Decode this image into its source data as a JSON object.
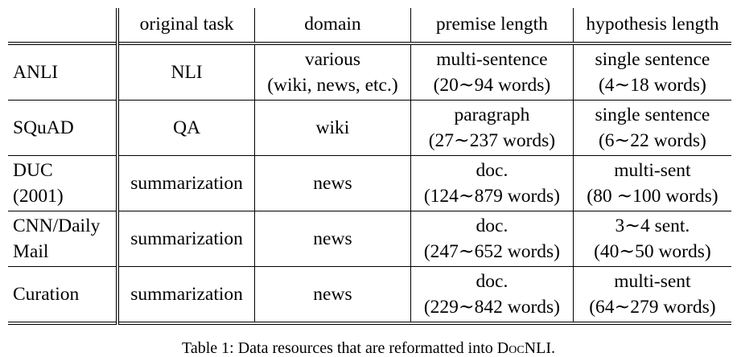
{
  "table": {
    "headers": [
      "",
      "original task",
      "domain",
      "premise length",
      "hypothesis length"
    ],
    "rows": [
      {
        "name": "ANLI",
        "task": "NLI",
        "domain": [
          "various",
          "(wiki, news, etc.)"
        ],
        "premise": [
          "multi-sentence",
          "(20∼94 words)"
        ],
        "hypothesis": [
          "single sentence",
          "(4∼18 words)"
        ]
      },
      {
        "name": "SQuAD",
        "task": "QA",
        "domain": [
          "wiki"
        ],
        "premise": [
          "paragraph",
          "(27∼237 words)"
        ],
        "hypothesis": [
          "single sentence",
          "(6∼22 words)"
        ]
      },
      {
        "name": [
          "DUC",
          "(2001)"
        ],
        "task": "summarization",
        "domain": [
          "news"
        ],
        "premise": [
          "doc.",
          "(124∼879 words)"
        ],
        "hypothesis": [
          "multi-sent",
          "(80 ∼100 words)"
        ]
      },
      {
        "name": [
          "CNN/Daily",
          "Mail"
        ],
        "task": "summarization",
        "domain": [
          "news"
        ],
        "premise": [
          "doc.",
          "(247∼652 words)"
        ],
        "hypothesis": [
          "3∼4 sent.",
          "(40∼50 words)"
        ]
      },
      {
        "name": "Curation",
        "task": "summarization",
        "domain": [
          "news"
        ],
        "premise": [
          "doc.",
          "(229∼842 words)"
        ],
        "hypothesis": [
          "multi-sent",
          "(64∼279 words)"
        ]
      }
    ]
  },
  "caption": {
    "prefix": "Table 1: Data resources that are reformatted into ",
    "docnli": "DocNLI",
    "suffix": "."
  }
}
